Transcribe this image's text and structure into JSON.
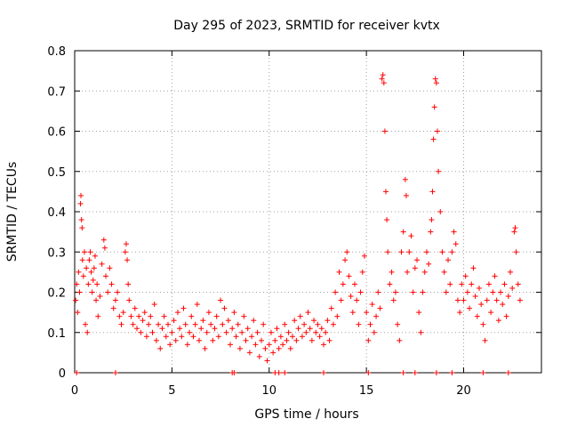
{
  "chart_data": {
    "type": "scatter",
    "title": "Day 295 of 2023, SRMTID for receiver kvtx",
    "xlabel": "GPS time / hours",
    "ylabel": "SRMTID / TECUs",
    "xlim": [
      0,
      24
    ],
    "ylim": [
      0,
      0.8
    ],
    "xticks": [
      0,
      5,
      10,
      15,
      20
    ],
    "yticks": [
      0,
      0.1,
      0.2,
      0.3,
      0.4,
      0.5,
      0.6,
      0.7,
      0.8
    ],
    "xtick_labels": [
      "0",
      "5",
      "10",
      "15",
      "20"
    ],
    "ytick_labels": [
      "0",
      "0.1",
      "0.2",
      "0.3",
      "0.4",
      "0.5",
      "0.6",
      "0.7",
      "0.8"
    ],
    "grid": true,
    "marker": "+",
    "color": "#ff0000",
    "series": [
      {
        "name": "SRMTID",
        "points": [
          [
            0.05,
            0.18
          ],
          [
            0.1,
            0.22
          ],
          [
            0.15,
            0.15
          ],
          [
            0.2,
            0.25
          ],
          [
            0.25,
            0.2
          ],
          [
            0.3,
            0.42
          ],
          [
            0.32,
            0.44
          ],
          [
            0.35,
            0.38
          ],
          [
            0.38,
            0.36
          ],
          [
            0.4,
            0.28
          ],
          [
            0.45,
            0.24
          ],
          [
            0.5,
            0.3
          ],
          [
            0.55,
            0.12
          ],
          [
            0.6,
            0.26
          ],
          [
            0.65,
            0.1
          ],
          [
            0.7,
            0.22
          ],
          [
            0.75,
            0.28
          ],
          [
            0.8,
            0.3
          ],
          [
            0.85,
            0.25
          ],
          [
            0.9,
            0.2
          ],
          [
            0.95,
            0.23
          ],
          [
            1.0,
            0.26
          ],
          [
            1.05,
            0.29
          ],
          [
            1.1,
            0.18
          ],
          [
            1.15,
            0.22
          ],
          [
            1.2,
            0.14
          ],
          [
            1.3,
            0.19
          ],
          [
            1.4,
            0.27
          ],
          [
            1.5,
            0.33
          ],
          [
            1.55,
            0.31
          ],
          [
            1.6,
            0.24
          ],
          [
            1.7,
            0.2
          ],
          [
            1.8,
            0.26
          ],
          [
            1.9,
            0.22
          ],
          [
            2.0,
            0.16
          ],
          [
            2.1,
            0.18
          ],
          [
            2.2,
            0.2
          ],
          [
            2.3,
            0.14
          ],
          [
            2.4,
            0.12
          ],
          [
            2.5,
            0.15
          ],
          [
            2.6,
            0.3
          ],
          [
            2.65,
            0.32
          ],
          [
            2.7,
            0.28
          ],
          [
            2.75,
            0.22
          ],
          [
            2.8,
            0.18
          ],
          [
            2.9,
            0.14
          ],
          [
            3.0,
            0.12
          ],
          [
            3.1,
            0.16
          ],
          [
            3.2,
            0.11
          ],
          [
            3.3,
            0.14
          ],
          [
            3.4,
            0.1
          ],
          [
            3.5,
            0.13
          ],
          [
            3.6,
            0.15
          ],
          [
            3.7,
            0.09
          ],
          [
            3.8,
            0.12
          ],
          [
            3.9,
            0.14
          ],
          [
            4.0,
            0.1
          ],
          [
            4.1,
            0.17
          ],
          [
            4.2,
            0.08
          ],
          [
            4.3,
            0.12
          ],
          [
            4.4,
            0.06
          ],
          [
            4.5,
            0.11
          ],
          [
            4.6,
            0.14
          ],
          [
            4.7,
            0.09
          ],
          [
            4.8,
            0.12
          ],
          [
            4.9,
            0.07
          ],
          [
            5.0,
            0.1
          ],
          [
            5.1,
            0.13
          ],
          [
            5.2,
            0.08
          ],
          [
            5.3,
            0.15
          ],
          [
            5.4,
            0.11
          ],
          [
            5.5,
            0.09
          ],
          [
            5.6,
            0.16
          ],
          [
            5.7,
            0.12
          ],
          [
            5.8,
            0.07
          ],
          [
            5.9,
            0.1
          ],
          [
            6.0,
            0.14
          ],
          [
            6.1,
            0.09
          ],
          [
            6.2,
            0.12
          ],
          [
            6.3,
            0.17
          ],
          [
            6.4,
            0.08
          ],
          [
            6.5,
            0.11
          ],
          [
            6.6,
            0.13
          ],
          [
            6.7,
            0.06
          ],
          [
            6.8,
            0.1
          ],
          [
            6.9,
            0.15
          ],
          [
            7.0,
            0.12
          ],
          [
            7.1,
            0.08
          ],
          [
            7.2,
            0.11
          ],
          [
            7.3,
            0.14
          ],
          [
            7.4,
            0.09
          ],
          [
            7.5,
            0.18
          ],
          [
            7.6,
            0.12
          ],
          [
            7.7,
            0.16
          ],
          [
            7.8,
            0.1
          ],
          [
            7.9,
            0.13
          ],
          [
            8.0,
            0.07
          ],
          [
            8.1,
            0.11
          ],
          [
            8.2,
            0.15
          ],
          [
            8.3,
            0.09
          ],
          [
            8.4,
            0.12
          ],
          [
            8.5,
            0.06
          ],
          [
            8.6,
            0.1
          ],
          [
            8.7,
            0.14
          ],
          [
            8.8,
            0.08
          ],
          [
            8.9,
            0.11
          ],
          [
            9.0,
            0.05
          ],
          [
            9.1,
            0.09
          ],
          [
            9.2,
            0.13
          ],
          [
            9.3,
            0.07
          ],
          [
            9.4,
            0.1
          ],
          [
            9.5,
            0.04
          ],
          [
            9.6,
            0.08
          ],
          [
            9.7,
            0.12
          ],
          [
            9.8,
            0.06
          ],
          [
            9.9,
            0.03
          ],
          [
            10.0,
            0.07
          ],
          [
            10.1,
            0.1
          ],
          [
            10.2,
            0.05
          ],
          [
            10.3,
            0.08
          ],
          [
            10.4,
            0.11
          ],
          [
            10.5,
            0.06
          ],
          [
            10.6,
            0.09
          ],
          [
            10.7,
            0.07
          ],
          [
            10.8,
            0.12
          ],
          [
            10.9,
            0.08
          ],
          [
            11.0,
            0.1
          ],
          [
            11.1,
            0.06
          ],
          [
            11.2,
            0.09
          ],
          [
            11.3,
            0.13
          ],
          [
            11.4,
            0.08
          ],
          [
            11.5,
            0.11
          ],
          [
            11.6,
            0.14
          ],
          [
            11.7,
            0.09
          ],
          [
            11.8,
            0.12
          ],
          [
            11.9,
            0.1
          ],
          [
            12.0,
            0.15
          ],
          [
            12.1,
            0.11
          ],
          [
            12.2,
            0.08
          ],
          [
            12.3,
            0.13
          ],
          [
            12.4,
            0.1
          ],
          [
            12.5,
            0.12
          ],
          [
            12.6,
            0.09
          ],
          [
            12.7,
            0.11
          ],
          [
            12.8,
            0.07
          ],
          [
            12.9,
            0.1
          ],
          [
            13.0,
            0.13
          ],
          [
            13.1,
            0.08
          ],
          [
            13.2,
            0.16
          ],
          [
            13.3,
            0.12
          ],
          [
            13.4,
            0.2
          ],
          [
            13.5,
            0.14
          ],
          [
            13.6,
            0.25
          ],
          [
            13.7,
            0.18
          ],
          [
            13.8,
            0.22
          ],
          [
            13.9,
            0.28
          ],
          [
            14.0,
            0.3
          ],
          [
            14.1,
            0.24
          ],
          [
            14.2,
            0.19
          ],
          [
            14.3,
            0.15
          ],
          [
            14.4,
            0.22
          ],
          [
            14.5,
            0.18
          ],
          [
            14.6,
            0.12
          ],
          [
            14.7,
            0.2
          ],
          [
            14.8,
            0.25
          ],
          [
            14.9,
            0.29
          ],
          [
            15.0,
            0.15
          ],
          [
            15.1,
            0.08
          ],
          [
            15.2,
            0.12
          ],
          [
            15.3,
            0.17
          ],
          [
            15.4,
            0.1
          ],
          [
            15.5,
            0.14
          ],
          [
            15.6,
            0.2
          ],
          [
            15.7,
            0.16
          ],
          [
            15.8,
            0.73
          ],
          [
            15.85,
            0.74
          ],
          [
            15.9,
            0.72
          ],
          [
            15.95,
            0.6
          ],
          [
            16.0,
            0.45
          ],
          [
            16.05,
            0.38
          ],
          [
            16.1,
            0.3
          ],
          [
            16.2,
            0.22
          ],
          [
            16.3,
            0.25
          ],
          [
            16.4,
            0.18
          ],
          [
            16.5,
            0.2
          ],
          [
            16.6,
            0.12
          ],
          [
            16.7,
            0.08
          ],
          [
            16.8,
            0.3
          ],
          [
            16.9,
            0.35
          ],
          [
            17.0,
            0.48
          ],
          [
            17.05,
            0.44
          ],
          [
            17.1,
            0.25
          ],
          [
            17.2,
            0.3
          ],
          [
            17.3,
            0.34
          ],
          [
            17.4,
            0.2
          ],
          [
            17.5,
            0.26
          ],
          [
            17.6,
            0.28
          ],
          [
            17.7,
            0.15
          ],
          [
            17.8,
            0.1
          ],
          [
            17.9,
            0.2
          ],
          [
            18.0,
            0.25
          ],
          [
            18.1,
            0.3
          ],
          [
            18.2,
            0.27
          ],
          [
            18.3,
            0.35
          ],
          [
            18.35,
            0.38
          ],
          [
            18.4,
            0.45
          ],
          [
            18.45,
            0.58
          ],
          [
            18.5,
            0.66
          ],
          [
            18.55,
            0.73
          ],
          [
            18.6,
            0.72
          ],
          [
            18.65,
            0.6
          ],
          [
            18.7,
            0.5
          ],
          [
            18.8,
            0.4
          ],
          [
            18.9,
            0.3
          ],
          [
            19.0,
            0.25
          ],
          [
            19.1,
            0.2
          ],
          [
            19.2,
            0.28
          ],
          [
            19.3,
            0.22
          ],
          [
            19.4,
            0.3
          ],
          [
            19.5,
            0.35
          ],
          [
            19.6,
            0.32
          ],
          [
            19.7,
            0.18
          ],
          [
            19.8,
            0.15
          ],
          [
            19.9,
            0.22
          ],
          [
            20.0,
            0.18
          ],
          [
            20.1,
            0.24
          ],
          [
            20.2,
            0.2
          ],
          [
            20.3,
            0.16
          ],
          [
            20.4,
            0.22
          ],
          [
            20.5,
            0.26
          ],
          [
            20.6,
            0.19
          ],
          [
            20.7,
            0.14
          ],
          [
            20.8,
            0.21
          ],
          [
            20.9,
            0.17
          ],
          [
            21.0,
            0.12
          ],
          [
            21.1,
            0.08
          ],
          [
            21.2,
            0.18
          ],
          [
            21.3,
            0.22
          ],
          [
            21.4,
            0.15
          ],
          [
            21.5,
            0.2
          ],
          [
            21.6,
            0.24
          ],
          [
            21.7,
            0.18
          ],
          [
            21.8,
            0.13
          ],
          [
            21.9,
            0.2
          ],
          [
            22.0,
            0.17
          ],
          [
            22.1,
            0.22
          ],
          [
            22.2,
            0.14
          ],
          [
            22.3,
            0.19
          ],
          [
            22.4,
            0.25
          ],
          [
            22.5,
            0.21
          ],
          [
            22.6,
            0.35
          ],
          [
            22.65,
            0.36
          ],
          [
            22.7,
            0.3
          ],
          [
            22.8,
            0.22
          ],
          [
            22.9,
            0.18
          ]
        ]
      }
    ],
    "baseline_points_x": [
      0.1,
      2.1,
      8.1,
      8.2,
      10.3,
      10.5,
      10.8,
      12.8,
      15.1,
      16.9,
      17.5,
      18.6,
      19.4,
      21.0,
      22.3
    ]
  }
}
